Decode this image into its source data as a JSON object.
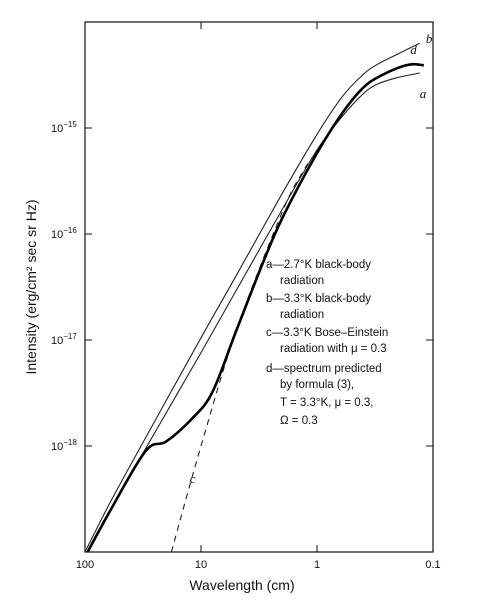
{
  "chart_data": {
    "type": "line",
    "xlabel": "Wavelength  (cm)",
    "ylabel": "Intensity  (erg/cm² sec sr Hz)",
    "x_scale": "log",
    "y_scale": "log",
    "x_reversed": true,
    "xlim": [
      100,
      0.1
    ],
    "ylim": [
      1e-19,
      1e-14
    ],
    "x_ticks": [
      {
        "value": 100,
        "label": "100"
      },
      {
        "value": 10,
        "label": "10"
      },
      {
        "value": 1,
        "label": "1"
      },
      {
        "value": 0.1,
        "label": "0.1"
      }
    ],
    "y_ticks": [
      {
        "value": 1e-15,
        "label_base": "10",
        "label_exp": "−15"
      },
      {
        "value": 1e-16,
        "label_base": "10",
        "label_exp": "−16"
      },
      {
        "value": 1e-17,
        "label_base": "10",
        "label_exp": "−17"
      },
      {
        "value": 1e-18,
        "label_base": "10",
        "label_exp": "−18"
      }
    ],
    "series": [
      {
        "name": "a",
        "label": "a",
        "style": "thin",
        "points": [
          [
            95,
            1e-19
          ],
          [
            60,
            2.5e-19
          ],
          [
            30,
            9.5e-19
          ],
          [
            10,
            7.6e-18
          ],
          [
            5,
            2.9e-17
          ],
          [
            2,
            1.7e-16
          ],
          [
            1,
            6.2e-16
          ],
          [
            0.6,
            1.3e-15
          ],
          [
            0.4,
            2.1e-15
          ],
          [
            0.3,
            2.6e-15
          ],
          [
            0.2,
            3e-15
          ],
          [
            0.13,
            3.3e-15
          ]
        ]
      },
      {
        "name": "b",
        "label": "b",
        "style": "thin",
        "points": [
          [
            100,
            1e-19
          ],
          [
            60,
            3e-19
          ],
          [
            30,
            1.2e-18
          ],
          [
            10,
            1.05e-17
          ],
          [
            5,
            4e-17
          ],
          [
            2,
            2.4e-16
          ],
          [
            1,
            8.7e-16
          ],
          [
            0.6,
            2e-15
          ],
          [
            0.4,
            3.2e-15
          ],
          [
            0.3,
            4e-15
          ],
          [
            0.2,
            5e-15
          ],
          [
            0.13,
            6.3e-15
          ]
        ]
      },
      {
        "name": "c",
        "label": "c",
        "style": "dashed",
        "points": [
          [
            18,
            1e-19
          ],
          [
            10,
            1e-18
          ],
          [
            5,
            1.2e-17
          ],
          [
            2,
            1.6e-16
          ],
          [
            1.3,
            4e-16
          ],
          [
            1,
            6e-16
          ]
        ]
      },
      {
        "name": "d",
        "label": "d",
        "style": "thick",
        "points": [
          [
            95,
            1e-19
          ],
          [
            60,
            2.5e-19
          ],
          [
            30,
            9e-19
          ],
          [
            20,
            1.1e-18
          ],
          [
            12,
            1.8e-18
          ],
          [
            8,
            3.2e-18
          ],
          [
            5,
            1.2e-17
          ],
          [
            3,
            5e-17
          ],
          [
            2,
            1.4e-16
          ],
          [
            1,
            5.8e-16
          ],
          [
            0.6,
            1.4e-15
          ],
          [
            0.4,
            2.4e-15
          ],
          [
            0.3,
            3e-15
          ],
          [
            0.2,
            3.7e-15
          ],
          [
            0.15,
            4e-15
          ],
          [
            0.12,
            3.9e-15
          ]
        ]
      }
    ],
    "legend": {
      "placement": "center-right",
      "entries": [
        {
          "line1": "a—2.7°K black-body",
          "line2": "radiation"
        },
        {
          "line1": "b—3.3°K black-body",
          "line2": "radiation"
        },
        {
          "line1": "c—3.3°K Bose–Einstein",
          "line2": "radiation with μ = 0.3"
        },
        {
          "line1": "d—spectrum predicted",
          "line2": "by formula (3),",
          "line3": "T = 3.3°K,  μ = 0.3,",
          "line4": "Ω = 0.3"
        }
      ]
    },
    "grid": false
  }
}
